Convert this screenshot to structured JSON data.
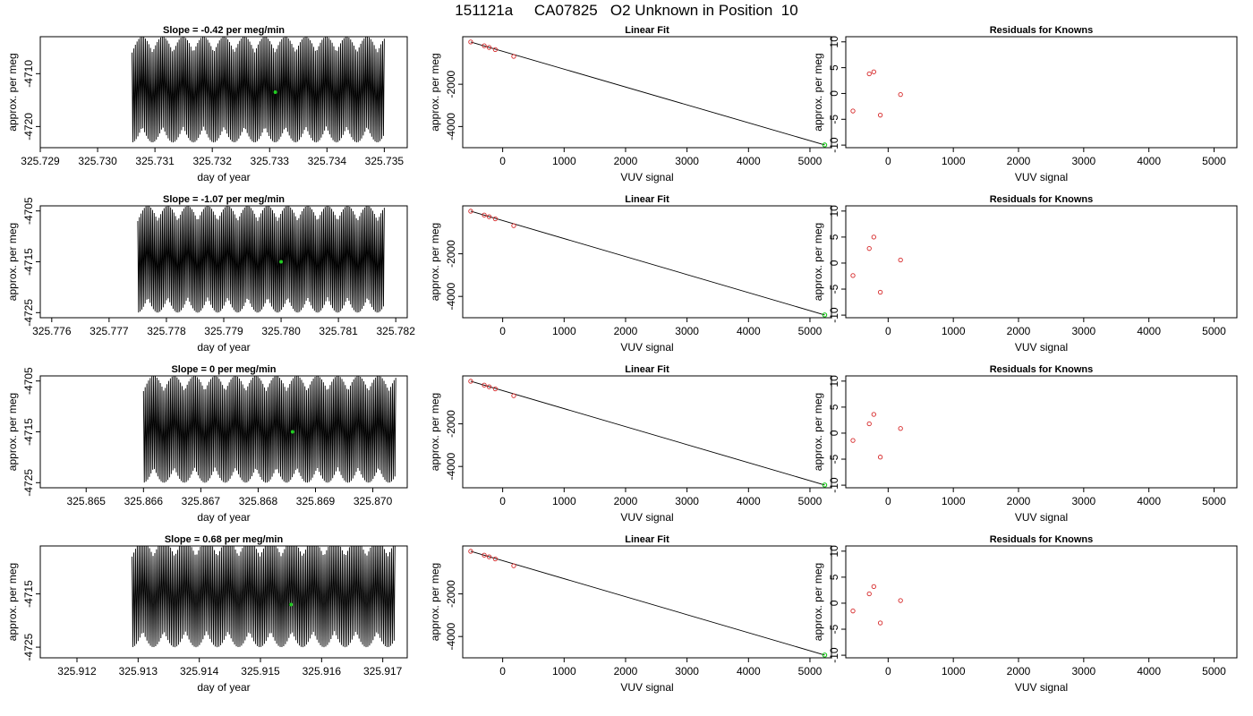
{
  "page_title": "151121a     CA07825   O2 Unknown in Position  10",
  "chart_data": [
    {
      "kind": "timeseries",
      "type": "line",
      "title": "Slope =  -0.42  per meg/min",
      "xlabel": "day of year",
      "ylabel": "approx. per meg",
      "xlim": [
        325.729,
        325.7354
      ],
      "ylim": [
        -4724,
        -4703
      ],
      "x_ticks": [
        325.729,
        325.73,
        325.731,
        325.732,
        325.733,
        325.734,
        325.735
      ],
      "x_tick_labels": [
        "325.729",
        "325.730",
        "325.731",
        "325.732",
        "325.733",
        "325.734",
        "325.735"
      ],
      "y_ticks": [
        -4710,
        -4720
      ],
      "y_tick_labels": [
        "-4710",
        "-4720"
      ],
      "signal": {
        "x_start": 325.7306,
        "x_end": 325.735,
        "cycles": 150,
        "low": -4720,
        "high": -4706,
        "overshoot": 3
      },
      "highlight_point": {
        "x": 325.7331,
        "y": -4713.5
      }
    },
    {
      "kind": "linfit",
      "type": "scatter",
      "title": "Linear Fit",
      "xlabel": "VUV signal",
      "ylabel": "approx. per meg",
      "xlim": [
        -650,
        5350
      ],
      "ylim": [
        -5000,
        250
      ],
      "x_ticks": [
        0,
        1000,
        2000,
        3000,
        4000,
        5000
      ],
      "x_tick_labels": [
        "0",
        "1000",
        "2000",
        "3000",
        "4000",
        "5000"
      ],
      "y_ticks": [
        -2000,
        -4000
      ],
      "y_tick_labels": [
        "-2000",
        "-4000"
      ],
      "points": [
        [
          -520,
          0
        ],
        [
          -300,
          -180
        ],
        [
          -220,
          -260
        ],
        [
          -120,
          -360
        ],
        [
          180,
          -680
        ]
      ],
      "fit_line": [
        [
          -520,
          0
        ],
        [
          5240,
          -4870
        ]
      ],
      "unknown_point": [
        5240,
        -4870
      ]
    },
    {
      "kind": "residuals",
      "type": "scatter",
      "title": "Residuals for Knowns",
      "xlabel": "VUV signal",
      "ylabel": "approx. per meg",
      "xlim": [
        -650,
        5350
      ],
      "ylim": [
        -10.5,
        11
      ],
      "x_ticks": [
        0,
        1000,
        2000,
        3000,
        4000,
        5000
      ],
      "x_tick_labels": [
        "0",
        "1000",
        "2000",
        "3000",
        "4000",
        "5000"
      ],
      "y_ticks": [
        10,
        5,
        0,
        -5,
        -10
      ],
      "y_tick_labels": [
        "10",
        "5",
        "0",
        "-5",
        "-10"
      ],
      "points": [
        [
          -540,
          -3.4
        ],
        [
          -290,
          3.8
        ],
        [
          -220,
          4.2
        ],
        [
          -120,
          -4.2
        ],
        [
          190,
          -0.2
        ]
      ]
    },
    {
      "kind": "timeseries",
      "type": "line",
      "title": "Slope =  -1.07  per meg/min",
      "xlabel": "day of year",
      "ylabel": "approx. per meg",
      "xlim": [
        325.7758,
        325.7822
      ],
      "ylim": [
        -4726,
        -4704
      ],
      "x_ticks": [
        325.776,
        325.777,
        325.778,
        325.779,
        325.78,
        325.781,
        325.782
      ],
      "x_tick_labels": [
        "325.776",
        "325.777",
        "325.778",
        "325.779",
        "325.780",
        "325.781",
        "325.782"
      ],
      "y_ticks": [
        -4705,
        -4715,
        -4725
      ],
      "y_tick_labels": [
        "-4705",
        "-4715",
        "-4725"
      ],
      "signal": {
        "x_start": 325.7775,
        "x_end": 325.7818,
        "cycles": 150,
        "low": -4722,
        "high": -4707,
        "overshoot": 3
      },
      "highlight_point": {
        "x": 325.78,
        "y": -4715
      }
    },
    {
      "kind": "linfit",
      "type": "scatter",
      "title": "Linear Fit",
      "xlabel": "VUV signal",
      "ylabel": "approx. per meg",
      "xlim": [
        -650,
        5350
      ],
      "ylim": [
        -5000,
        250
      ],
      "x_ticks": [
        0,
        1000,
        2000,
        3000,
        4000,
        5000
      ],
      "x_tick_labels": [
        "0",
        "1000",
        "2000",
        "3000",
        "4000",
        "5000"
      ],
      "y_ticks": [
        -2000,
        -4000
      ],
      "y_tick_labels": [
        "-2000",
        "-4000"
      ],
      "points": [
        [
          -520,
          0
        ],
        [
          -300,
          -180
        ],
        [
          -220,
          -260
        ],
        [
          -120,
          -360
        ],
        [
          180,
          -680
        ]
      ],
      "fit_line": [
        [
          -520,
          0
        ],
        [
          5240,
          -4870
        ]
      ],
      "unknown_point": [
        5240,
        -4870
      ]
    },
    {
      "kind": "residuals",
      "type": "scatter",
      "title": "Residuals for Knowns",
      "xlabel": "VUV signal",
      "ylabel": "approx. per meg",
      "xlim": [
        -650,
        5350
      ],
      "ylim": [
        -10.5,
        11
      ],
      "x_ticks": [
        0,
        1000,
        2000,
        3000,
        4000,
        5000
      ],
      "x_tick_labels": [
        "0",
        "1000",
        "2000",
        "3000",
        "4000",
        "5000"
      ],
      "y_ticks": [
        10,
        5,
        0,
        -5,
        -10
      ],
      "y_tick_labels": [
        "10",
        "5",
        "0",
        "-5",
        "-10"
      ],
      "points": [
        [
          -540,
          -2.4
        ],
        [
          -290,
          2.8
        ],
        [
          -220,
          5.0
        ],
        [
          -120,
          -5.6
        ],
        [
          190,
          0.6
        ]
      ]
    },
    {
      "kind": "timeseries",
      "type": "line",
      "title": "Slope =  0  per meg/min",
      "xlabel": "day of year",
      "ylabel": "approx. per meg",
      "xlim": [
        325.8642,
        325.8706
      ],
      "ylim": [
        -4726,
        -4704
      ],
      "x_ticks": [
        325.865,
        325.866,
        325.867,
        325.868,
        325.869,
        325.87
      ],
      "x_tick_labels": [
        "325.865",
        "325.866",
        "325.867",
        "325.868",
        "325.869",
        "325.870"
      ],
      "y_ticks": [
        -4705,
        -4715,
        -4725
      ],
      "y_tick_labels": [
        "-4705",
        "-4715",
        "-4725"
      ],
      "signal": {
        "x_start": 325.866,
        "x_end": 325.8704,
        "cycles": 150,
        "low": -4722,
        "high": -4707,
        "overshoot": 3
      },
      "highlight_point": {
        "x": 325.8686,
        "y": -4715
      }
    },
    {
      "kind": "linfit",
      "type": "scatter",
      "title": "Linear Fit",
      "xlabel": "VUV signal",
      "ylabel": "approx. per meg",
      "xlim": [
        -650,
        5350
      ],
      "ylim": [
        -5000,
        250
      ],
      "x_ticks": [
        0,
        1000,
        2000,
        3000,
        4000,
        5000
      ],
      "x_tick_labels": [
        "0",
        "1000",
        "2000",
        "3000",
        "4000",
        "5000"
      ],
      "y_ticks": [
        -2000,
        -4000
      ],
      "y_tick_labels": [
        "-2000",
        "-4000"
      ],
      "points": [
        [
          -520,
          0
        ],
        [
          -300,
          -180
        ],
        [
          -220,
          -260
        ],
        [
          -120,
          -360
        ],
        [
          180,
          -680
        ]
      ],
      "fit_line": [
        [
          -520,
          0
        ],
        [
          5240,
          -4870
        ]
      ],
      "unknown_point": [
        5240,
        -4870
      ]
    },
    {
      "kind": "residuals",
      "type": "scatter",
      "title": "Residuals for Knowns",
      "xlabel": "VUV signal",
      "ylabel": "approx. per meg",
      "xlim": [
        -650,
        5350
      ],
      "ylim": [
        -10.5,
        11
      ],
      "x_ticks": [
        0,
        1000,
        2000,
        3000,
        4000,
        5000
      ],
      "x_tick_labels": [
        "0",
        "1000",
        "2000",
        "3000",
        "4000",
        "5000"
      ],
      "y_ticks": [
        10,
        5,
        0,
        -5,
        -10
      ],
      "y_tick_labels": [
        "10",
        "5",
        "0",
        "-5",
        "-10"
      ],
      "points": [
        [
          -540,
          -1.4
        ],
        [
          -290,
          1.8
        ],
        [
          -220,
          3.6
        ],
        [
          -120,
          -4.6
        ],
        [
          190,
          0.9
        ]
      ]
    },
    {
      "kind": "timeseries",
      "type": "line",
      "title": "Slope =  0.68  per meg/min",
      "xlabel": "day of year",
      "ylabel": "approx. per meg",
      "xlim": [
        325.9114,
        325.9174
      ],
      "ylim": [
        -4727,
        -4706
      ],
      "x_ticks": [
        325.912,
        325.913,
        325.914,
        325.915,
        325.916,
        325.917
      ],
      "x_tick_labels": [
        "325.912",
        "325.913",
        "325.914",
        "325.915",
        "325.916",
        "325.917"
      ],
      "y_ticks": [
        -4715,
        -4725
      ],
      "y_tick_labels": [
        "-4715",
        "-4725"
      ],
      "signal": {
        "x_start": 325.9129,
        "x_end": 325.9172,
        "cycles": 150,
        "low": -4722,
        "high": -4708,
        "overshoot": 3
      },
      "highlight_point": {
        "x": 325.9155,
        "y": -4717
      }
    },
    {
      "kind": "linfit",
      "type": "scatter",
      "title": "Linear Fit",
      "xlabel": "VUV signal",
      "ylabel": "approx. per meg",
      "xlim": [
        -650,
        5350
      ],
      "ylim": [
        -5000,
        250
      ],
      "x_ticks": [
        0,
        1000,
        2000,
        3000,
        4000,
        5000
      ],
      "x_tick_labels": [
        "0",
        "1000",
        "2000",
        "3000",
        "4000",
        "5000"
      ],
      "y_ticks": [
        -2000,
        -4000
      ],
      "y_tick_labels": [
        "-2000",
        "-4000"
      ],
      "points": [
        [
          -520,
          0
        ],
        [
          -300,
          -180
        ],
        [
          -220,
          -260
        ],
        [
          -120,
          -360
        ],
        [
          180,
          -680
        ]
      ],
      "fit_line": [
        [
          -520,
          0
        ],
        [
          5240,
          -4870
        ]
      ],
      "unknown_point": [
        5240,
        -4870
      ]
    },
    {
      "kind": "residuals",
      "type": "scatter",
      "title": "Residuals for Knowns",
      "xlabel": "VUV signal",
      "ylabel": "approx. per meg",
      "xlim": [
        -650,
        5350
      ],
      "ylim": [
        -10.5,
        11
      ],
      "x_ticks": [
        0,
        1000,
        2000,
        3000,
        4000,
        5000
      ],
      "x_tick_labels": [
        "0",
        "1000",
        "2000",
        "3000",
        "4000",
        "5000"
      ],
      "y_ticks": [
        10,
        5,
        0,
        -5,
        -10
      ],
      "y_tick_labels": [
        "10",
        "5",
        "0",
        "-5",
        "-10"
      ],
      "points": [
        [
          -540,
          -1.5
        ],
        [
          -290,
          1.8
        ],
        [
          -220,
          3.2
        ],
        [
          -120,
          -3.8
        ],
        [
          190,
          0.5
        ]
      ]
    }
  ],
  "colors": {
    "known_point": "#d62728",
    "unknown_point": "#22cc22",
    "line": "#000000"
  }
}
